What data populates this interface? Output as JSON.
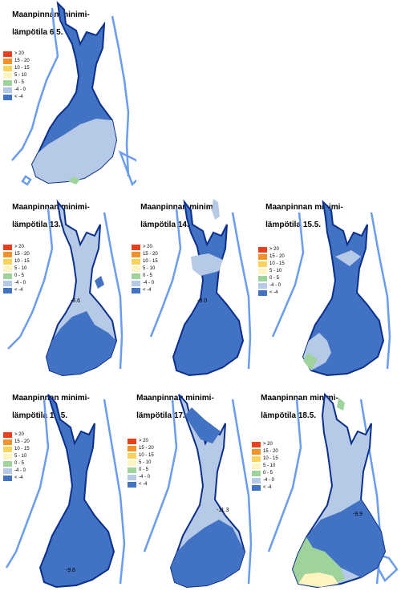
{
  "title_line1": "Maanpinnan minimi-",
  "title_prefix": "lämpötila",
  "legend": [
    {
      "label": "> 20",
      "color": "#e8401c"
    },
    {
      "label": "15 - 20",
      "color": "#f4922a"
    },
    {
      "label": "10 - 15",
      "color": "#fbd35a"
    },
    {
      "label": "5 - 10",
      "color": "#fdf4c0"
    },
    {
      "label": "0 - 5",
      "color": "#9ed49c"
    },
    {
      "label": "-4 - 0",
      "color": "#b6c9e6"
    },
    {
      "label": "< -4",
      "color": "#4272c4"
    }
  ],
  "panels": [
    {
      "date": "6.5.",
      "value_label": ""
    },
    {
      "date": "13.5.",
      "value_label": "-8.6"
    },
    {
      "date": "14.5.",
      "value_label": "-9.0"
    },
    {
      "date": "15.5.",
      "value_label": ""
    },
    {
      "date": "16.5.",
      "value_label": "-9.6"
    },
    {
      "date": "17.5.",
      "value_label": "-11.3"
    },
    {
      "date": "18.5.",
      "value_label": "-9.9"
    }
  ],
  "colors": {
    "dark_blue": "#4272c4",
    "light_blue": "#b6c9e6",
    "green": "#9ed49c",
    "pale_yellow": "#fdf4c0",
    "border": "#0b2f8c",
    "neighbor": "#6a9cf0"
  }
}
